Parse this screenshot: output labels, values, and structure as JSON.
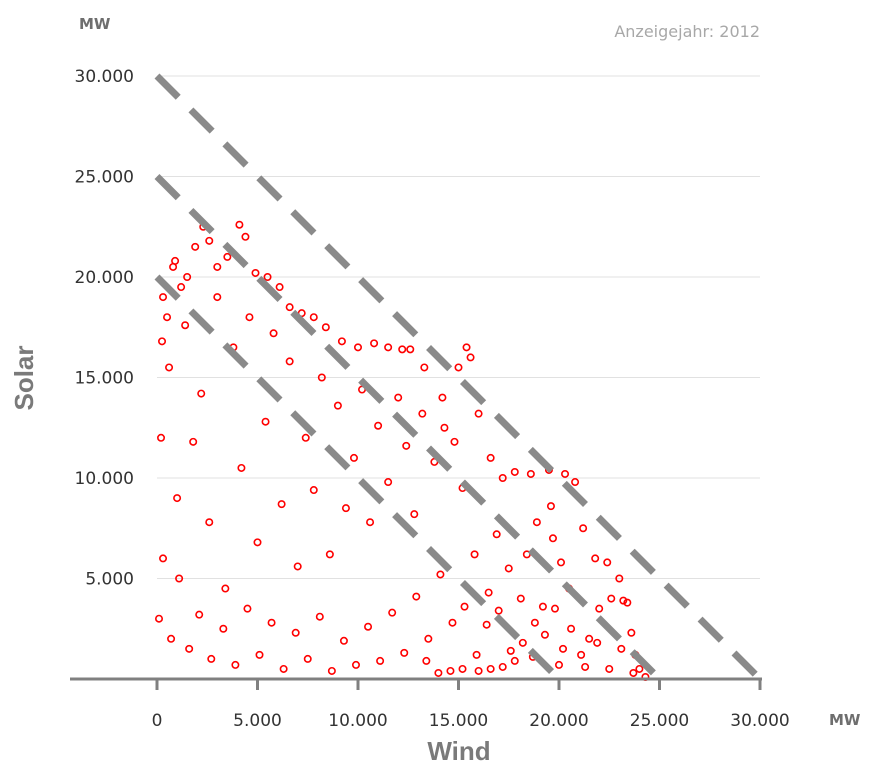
{
  "chart_data": {
    "type": "scatter",
    "annotation": "Anzeigejahr: 2012",
    "xlabel": "Wind",
    "ylabel": "Solar",
    "x_unit": "MW",
    "y_unit": "MW",
    "xlim": [
      0,
      30000
    ],
    "ylim": [
      0,
      30000
    ],
    "x_ticks": [
      "0",
      "5.000",
      "10.000",
      "15.000",
      "20.000",
      "25.000",
      "30.000"
    ],
    "y_ticks": [
      "5.000",
      "10.000",
      "15.000",
      "20.000",
      "25.000",
      "30.000"
    ],
    "grid": "horizontal",
    "series_color": "#ff0000",
    "reference_lines": [
      {
        "from": [
          0,
          30000
        ],
        "to": [
          30000,
          0
        ]
      },
      {
        "from": [
          0,
          25000
        ],
        "to": [
          25000,
          0
        ]
      },
      {
        "from": [
          0,
          20000
        ],
        "to": [
          20000,
          0
        ]
      }
    ],
    "series": [
      {
        "points": [
          [
            300,
            19000
          ],
          [
            500,
            18000
          ],
          [
            800,
            20500
          ],
          [
            900,
            20800
          ],
          [
            1200,
            19500
          ],
          [
            1500,
            20000
          ],
          [
            1900,
            21500
          ],
          [
            2300,
            22500
          ],
          [
            2600,
            21800
          ],
          [
            3000,
            20500
          ],
          [
            3500,
            21000
          ],
          [
            4100,
            22600
          ],
          [
            4400,
            22000
          ],
          [
            4900,
            20200
          ],
          [
            5500,
            20000
          ],
          [
            6100,
            19500
          ],
          [
            6600,
            18500
          ],
          [
            7200,
            18200
          ],
          [
            7800,
            18000
          ],
          [
            8400,
            17500
          ],
          [
            9200,
            16800
          ],
          [
            10000,
            16500
          ],
          [
            10800,
            16700
          ],
          [
            11500,
            16500
          ],
          [
            12200,
            16400
          ],
          [
            12600,
            16400
          ],
          [
            13300,
            15500
          ],
          [
            14200,
            14000
          ],
          [
            15000,
            15500
          ],
          [
            15400,
            16500
          ],
          [
            15600,
            16000
          ],
          [
            16000,
            13200
          ],
          [
            16600,
            11000
          ],
          [
            17200,
            10000
          ],
          [
            17800,
            10300
          ],
          [
            18600,
            10200
          ],
          [
            19500,
            10400
          ],
          [
            20300,
            10200
          ],
          [
            20800,
            9800
          ],
          [
            21200,
            7500
          ],
          [
            21800,
            6000
          ],
          [
            22400,
            5800
          ],
          [
            23000,
            5000
          ],
          [
            23400,
            3800
          ],
          [
            23600,
            2300
          ],
          [
            23800,
            1200
          ],
          [
            24000,
            500
          ],
          [
            24300,
            100
          ],
          [
            23200,
            3900
          ],
          [
            22600,
            4000
          ],
          [
            22000,
            3500
          ],
          [
            21500,
            2000
          ],
          [
            21100,
            1200
          ],
          [
            20200,
            1500
          ],
          [
            19800,
            3500
          ],
          [
            19200,
            3600
          ],
          [
            18800,
            2800
          ],
          [
            18200,
            1800
          ],
          [
            17800,
            900
          ],
          [
            17200,
            600
          ],
          [
            16600,
            500
          ],
          [
            16000,
            400
          ],
          [
            15200,
            500
          ],
          [
            14600,
            400
          ],
          [
            14000,
            300
          ],
          [
            13400,
            900
          ],
          [
            19600,
            8600
          ],
          [
            19700,
            7000
          ],
          [
            20100,
            5800
          ],
          [
            20500,
            4500
          ],
          [
            18400,
            6200
          ],
          [
            18900,
            7800
          ],
          [
            17500,
            5500
          ],
          [
            16900,
            7200
          ],
          [
            16500,
            4300
          ],
          [
            15800,
            6200
          ],
          [
            15200,
            9500
          ],
          [
            14800,
            11800
          ],
          [
            14300,
            12500
          ],
          [
            13800,
            10800
          ],
          [
            13200,
            13200
          ],
          [
            12800,
            8200
          ],
          [
            12400,
            11600
          ],
          [
            12000,
            14000
          ],
          [
            11500,
            9800
          ],
          [
            11000,
            12600
          ],
          [
            10600,
            7800
          ],
          [
            10200,
            14400
          ],
          [
            9800,
            11000
          ],
          [
            9400,
            8500
          ],
          [
            9000,
            13600
          ],
          [
            8600,
            6200
          ],
          [
            8200,
            15000
          ],
          [
            7800,
            9400
          ],
          [
            7400,
            12000
          ],
          [
            7000,
            5600
          ],
          [
            6600,
            15800
          ],
          [
            6200,
            8700
          ],
          [
            5800,
            17200
          ],
          [
            5400,
            12800
          ],
          [
            5000,
            6800
          ],
          [
            4600,
            18000
          ],
          [
            4200,
            10500
          ],
          [
            3800,
            16500
          ],
          [
            3400,
            4500
          ],
          [
            3000,
            19000
          ],
          [
            2600,
            7800
          ],
          [
            2200,
            14200
          ],
          [
            1800,
            11800
          ],
          [
            1400,
            17600
          ],
          [
            1000,
            9000
          ],
          [
            600,
            15500
          ],
          [
            300,
            6000
          ],
          [
            200,
            12000
          ],
          [
            100,
            3000
          ],
          [
            250,
            16800
          ],
          [
            700,
            2000
          ],
          [
            1100,
            5000
          ],
          [
            1600,
            1500
          ],
          [
            2100,
            3200
          ],
          [
            2700,
            1000
          ],
          [
            3300,
            2500
          ],
          [
            3900,
            700
          ],
          [
            4500,
            3500
          ],
          [
            5100,
            1200
          ],
          [
            5700,
            2800
          ],
          [
            6300,
            500
          ],
          [
            6900,
            2300
          ],
          [
            7500,
            1000
          ],
          [
            8100,
            3100
          ],
          [
            8700,
            400
          ],
          [
            9300,
            1900
          ],
          [
            9900,
            700
          ],
          [
            10500,
            2600
          ],
          [
            11100,
            900
          ],
          [
            11700,
            3300
          ],
          [
            12300,
            1300
          ],
          [
            12900,
            4100
          ],
          [
            13500,
            2000
          ],
          [
            14100,
            5200
          ],
          [
            14700,
            2800
          ],
          [
            15300,
            3600
          ],
          [
            15900,
            1200
          ],
          [
            16400,
            2700
          ],
          [
            17000,
            3400
          ],
          [
            17600,
            1400
          ],
          [
            18100,
            4000
          ],
          [
            18700,
            1100
          ],
          [
            19300,
            2200
          ],
          [
            20000,
            700
          ],
          [
            20600,
            2500
          ],
          [
            21300,
            600
          ],
          [
            21900,
            1800
          ],
          [
            22500,
            500
          ],
          [
            23100,
            1500
          ],
          [
            23700,
            300
          ]
        ]
      }
    ]
  }
}
